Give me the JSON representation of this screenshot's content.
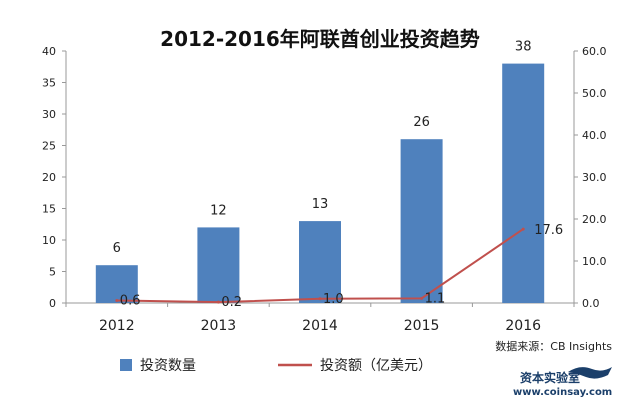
{
  "chart_data": {
    "type": "bar",
    "title": "2012-2016年阿联酋创业投资趋势",
    "categories": [
      "2012",
      "2013",
      "2014",
      "2015",
      "2016"
    ],
    "series": [
      {
        "name": "投资数量",
        "type": "bar",
        "axis": "left",
        "values": [
          6,
          12,
          13,
          26,
          38
        ],
        "labels": [
          "6",
          "12",
          "13",
          "26",
          "38"
        ],
        "color": "#4f81bd"
      },
      {
        "name": "投资额（亿美元）",
        "type": "line",
        "axis": "right",
        "values": [
          0.6,
          0.2,
          1.0,
          1.1,
          17.6
        ],
        "labels": [
          "0.6",
          "0.2",
          "1.0",
          "1.1",
          "17.6"
        ],
        "color": "#c0504d"
      }
    ],
    "y_left": {
      "min": 0,
      "max": 40,
      "ticks": [
        0,
        5,
        10,
        15,
        20,
        25,
        30,
        35,
        40
      ],
      "tick_labels": [
        "0",
        "5",
        "10",
        "15",
        "20",
        "25",
        "30",
        "35",
        "40"
      ]
    },
    "y_right": {
      "min": 0,
      "max": 60,
      "ticks": [
        0,
        10,
        20,
        30,
        40,
        50,
        60
      ],
      "tick_labels": [
        "0.0",
        "10.0",
        "20.0",
        "30.0",
        "40.0",
        "50.0",
        "60.0"
      ]
    },
    "grid": false,
    "legend_position": "bottom",
    "source": "数据来源：CB Insights"
  },
  "watermark": {
    "text": "资本实验室",
    "url": "www.coinsay.com"
  }
}
